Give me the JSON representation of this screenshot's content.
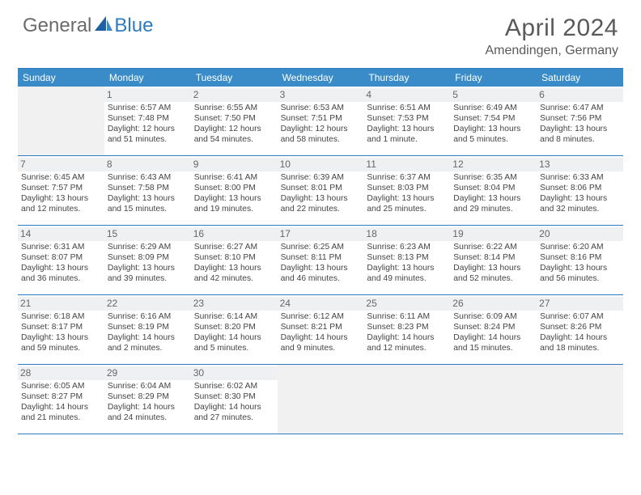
{
  "logo": {
    "general": "General",
    "blue": "Blue"
  },
  "title": "April 2024",
  "location": "Amendingen, Germany",
  "dayNames": [
    "Sunday",
    "Monday",
    "Tuesday",
    "Wednesday",
    "Thursday",
    "Friday",
    "Saturday"
  ],
  "colors": {
    "headerBg": "#3a8cc9",
    "border": "#2f7bbf",
    "blankBg": "#f1f1f1",
    "dayNumBg": "#eef0f1",
    "text": "#444444",
    "title": "#5a5a5a"
  },
  "leadingBlanks": 1,
  "trailingBlanks": 4,
  "days": [
    {
      "n": "1",
      "sunrise": "Sunrise: 6:57 AM",
      "sunset": "Sunset: 7:48 PM",
      "daylight": "Daylight: 12 hours and 51 minutes."
    },
    {
      "n": "2",
      "sunrise": "Sunrise: 6:55 AM",
      "sunset": "Sunset: 7:50 PM",
      "daylight": "Daylight: 12 hours and 54 minutes."
    },
    {
      "n": "3",
      "sunrise": "Sunrise: 6:53 AM",
      "sunset": "Sunset: 7:51 PM",
      "daylight": "Daylight: 12 hours and 58 minutes."
    },
    {
      "n": "4",
      "sunrise": "Sunrise: 6:51 AM",
      "sunset": "Sunset: 7:53 PM",
      "daylight": "Daylight: 13 hours and 1 minute."
    },
    {
      "n": "5",
      "sunrise": "Sunrise: 6:49 AM",
      "sunset": "Sunset: 7:54 PM",
      "daylight": "Daylight: 13 hours and 5 minutes."
    },
    {
      "n": "6",
      "sunrise": "Sunrise: 6:47 AM",
      "sunset": "Sunset: 7:56 PM",
      "daylight": "Daylight: 13 hours and 8 minutes."
    },
    {
      "n": "7",
      "sunrise": "Sunrise: 6:45 AM",
      "sunset": "Sunset: 7:57 PM",
      "daylight": "Daylight: 13 hours and 12 minutes."
    },
    {
      "n": "8",
      "sunrise": "Sunrise: 6:43 AM",
      "sunset": "Sunset: 7:58 PM",
      "daylight": "Daylight: 13 hours and 15 minutes."
    },
    {
      "n": "9",
      "sunrise": "Sunrise: 6:41 AM",
      "sunset": "Sunset: 8:00 PM",
      "daylight": "Daylight: 13 hours and 19 minutes."
    },
    {
      "n": "10",
      "sunrise": "Sunrise: 6:39 AM",
      "sunset": "Sunset: 8:01 PM",
      "daylight": "Daylight: 13 hours and 22 minutes."
    },
    {
      "n": "11",
      "sunrise": "Sunrise: 6:37 AM",
      "sunset": "Sunset: 8:03 PM",
      "daylight": "Daylight: 13 hours and 25 minutes."
    },
    {
      "n": "12",
      "sunrise": "Sunrise: 6:35 AM",
      "sunset": "Sunset: 8:04 PM",
      "daylight": "Daylight: 13 hours and 29 minutes."
    },
    {
      "n": "13",
      "sunrise": "Sunrise: 6:33 AM",
      "sunset": "Sunset: 8:06 PM",
      "daylight": "Daylight: 13 hours and 32 minutes."
    },
    {
      "n": "14",
      "sunrise": "Sunrise: 6:31 AM",
      "sunset": "Sunset: 8:07 PM",
      "daylight": "Daylight: 13 hours and 36 minutes."
    },
    {
      "n": "15",
      "sunrise": "Sunrise: 6:29 AM",
      "sunset": "Sunset: 8:09 PM",
      "daylight": "Daylight: 13 hours and 39 minutes."
    },
    {
      "n": "16",
      "sunrise": "Sunrise: 6:27 AM",
      "sunset": "Sunset: 8:10 PM",
      "daylight": "Daylight: 13 hours and 42 minutes."
    },
    {
      "n": "17",
      "sunrise": "Sunrise: 6:25 AM",
      "sunset": "Sunset: 8:11 PM",
      "daylight": "Daylight: 13 hours and 46 minutes."
    },
    {
      "n": "18",
      "sunrise": "Sunrise: 6:23 AM",
      "sunset": "Sunset: 8:13 PM",
      "daylight": "Daylight: 13 hours and 49 minutes."
    },
    {
      "n": "19",
      "sunrise": "Sunrise: 6:22 AM",
      "sunset": "Sunset: 8:14 PM",
      "daylight": "Daylight: 13 hours and 52 minutes."
    },
    {
      "n": "20",
      "sunrise": "Sunrise: 6:20 AM",
      "sunset": "Sunset: 8:16 PM",
      "daylight": "Daylight: 13 hours and 56 minutes."
    },
    {
      "n": "21",
      "sunrise": "Sunrise: 6:18 AM",
      "sunset": "Sunset: 8:17 PM",
      "daylight": "Daylight: 13 hours and 59 minutes."
    },
    {
      "n": "22",
      "sunrise": "Sunrise: 6:16 AM",
      "sunset": "Sunset: 8:19 PM",
      "daylight": "Daylight: 14 hours and 2 minutes."
    },
    {
      "n": "23",
      "sunrise": "Sunrise: 6:14 AM",
      "sunset": "Sunset: 8:20 PM",
      "daylight": "Daylight: 14 hours and 5 minutes."
    },
    {
      "n": "24",
      "sunrise": "Sunrise: 6:12 AM",
      "sunset": "Sunset: 8:21 PM",
      "daylight": "Daylight: 14 hours and 9 minutes."
    },
    {
      "n": "25",
      "sunrise": "Sunrise: 6:11 AM",
      "sunset": "Sunset: 8:23 PM",
      "daylight": "Daylight: 14 hours and 12 minutes."
    },
    {
      "n": "26",
      "sunrise": "Sunrise: 6:09 AM",
      "sunset": "Sunset: 8:24 PM",
      "daylight": "Daylight: 14 hours and 15 minutes."
    },
    {
      "n": "27",
      "sunrise": "Sunrise: 6:07 AM",
      "sunset": "Sunset: 8:26 PM",
      "daylight": "Daylight: 14 hours and 18 minutes."
    },
    {
      "n": "28",
      "sunrise": "Sunrise: 6:05 AM",
      "sunset": "Sunset: 8:27 PM",
      "daylight": "Daylight: 14 hours and 21 minutes."
    },
    {
      "n": "29",
      "sunrise": "Sunrise: 6:04 AM",
      "sunset": "Sunset: 8:29 PM",
      "daylight": "Daylight: 14 hours and 24 minutes."
    },
    {
      "n": "30",
      "sunrise": "Sunrise: 6:02 AM",
      "sunset": "Sunset: 8:30 PM",
      "daylight": "Daylight: 14 hours and 27 minutes."
    }
  ]
}
